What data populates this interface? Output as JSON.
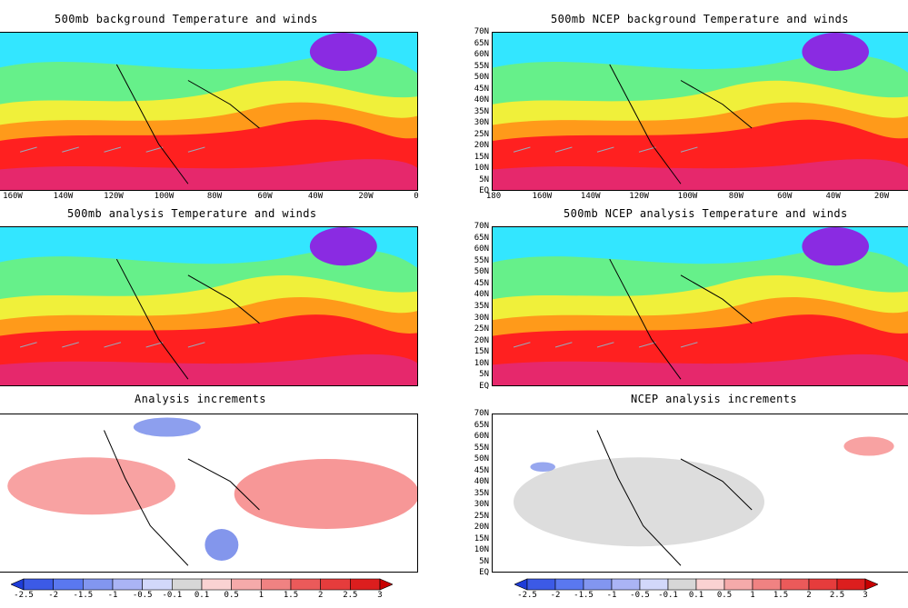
{
  "colors": {
    "cold_purple": "#8a2be2",
    "cyan": "#33e6ff",
    "green": "#66f08a",
    "yellow": "#f0f03a",
    "orange": "#ff9a1a",
    "red": "#ff2020",
    "magenta": "#e02a80",
    "inc_blue": "#3050e0",
    "inc_red": "#f03030",
    "inc_gray": "#cfcfcf"
  },
  "panels": [
    {
      "id": "bg",
      "title": "500mb background Temperature and winds",
      "kind": "temp"
    },
    {
      "id": "ncep-bg",
      "title": "500mb NCEP background Temperature and winds",
      "kind": "temp"
    },
    {
      "id": "an",
      "title": "500mb analysis Temperature and winds",
      "kind": "temp"
    },
    {
      "id": "ncep-an",
      "title": "500mb NCEP analysis Temperature and winds",
      "kind": "temp"
    },
    {
      "id": "inc",
      "title": "Analysis increments",
      "kind": "inc"
    },
    {
      "id": "ncep-inc",
      "title": "NCEP analysis increments",
      "kind": "inc"
    }
  ],
  "lat_labels": [
    "70N",
    "65N",
    "60N",
    "55N",
    "50N",
    "45N",
    "40N",
    "35N",
    "30N",
    "25N",
    "20N",
    "15N",
    "10N",
    "5N",
    "EQ"
  ],
  "lon_labels_left": [
    "160W",
    "140W",
    "120W",
    "100W",
    "80W",
    "60W",
    "40W",
    "20W",
    "0"
  ],
  "lon_labels_right": [
    "180",
    "160W",
    "140W",
    "120W",
    "100W",
    "80W",
    "60W",
    "40W",
    "20W"
  ],
  "colorbar_labels": [
    "-2.5",
    "-2",
    "-1.5",
    "-1",
    "-0.5",
    "-0.1",
    "0.1",
    "0.5",
    "1",
    "1.5",
    "2",
    "2.5",
    "3"
  ],
  "colorbar_colors": [
    "#1e3cd8",
    "#3c5ae6",
    "#5a78f0",
    "#8296f0",
    "#aab4f5",
    "#d2d8fa",
    "#d7d7d7",
    "#fad2d2",
    "#f5aaaa",
    "#f08282",
    "#eb5a5a",
    "#e63c3c",
    "#dc1e1e",
    "#c80000"
  ]
}
